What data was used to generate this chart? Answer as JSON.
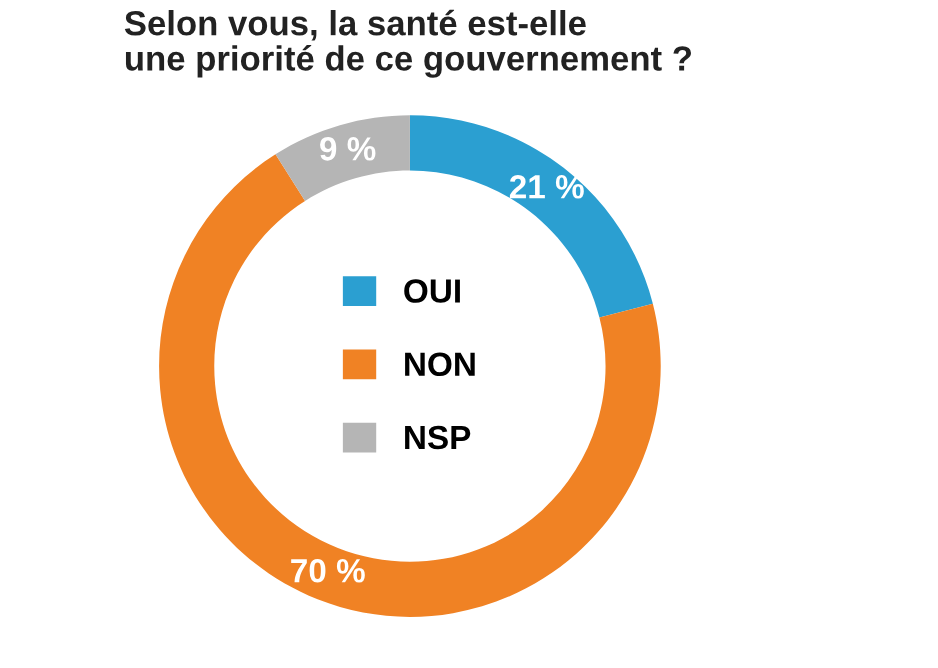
{
  "chart_data": {
    "type": "donut",
    "title": "Selon vous, la santé est-elle\nune priorité de ce gouvernement ?",
    "categories": [
      "OUI",
      "NON",
      "NSP"
    ],
    "values": [
      21,
      70,
      9
    ],
    "colors": [
      "#2b9fd1",
      "#f08224",
      "#b5b5b5"
    ],
    "value_labels": [
      "21 %",
      "70 %",
      "9 %"
    ],
    "legend": "center"
  }
}
